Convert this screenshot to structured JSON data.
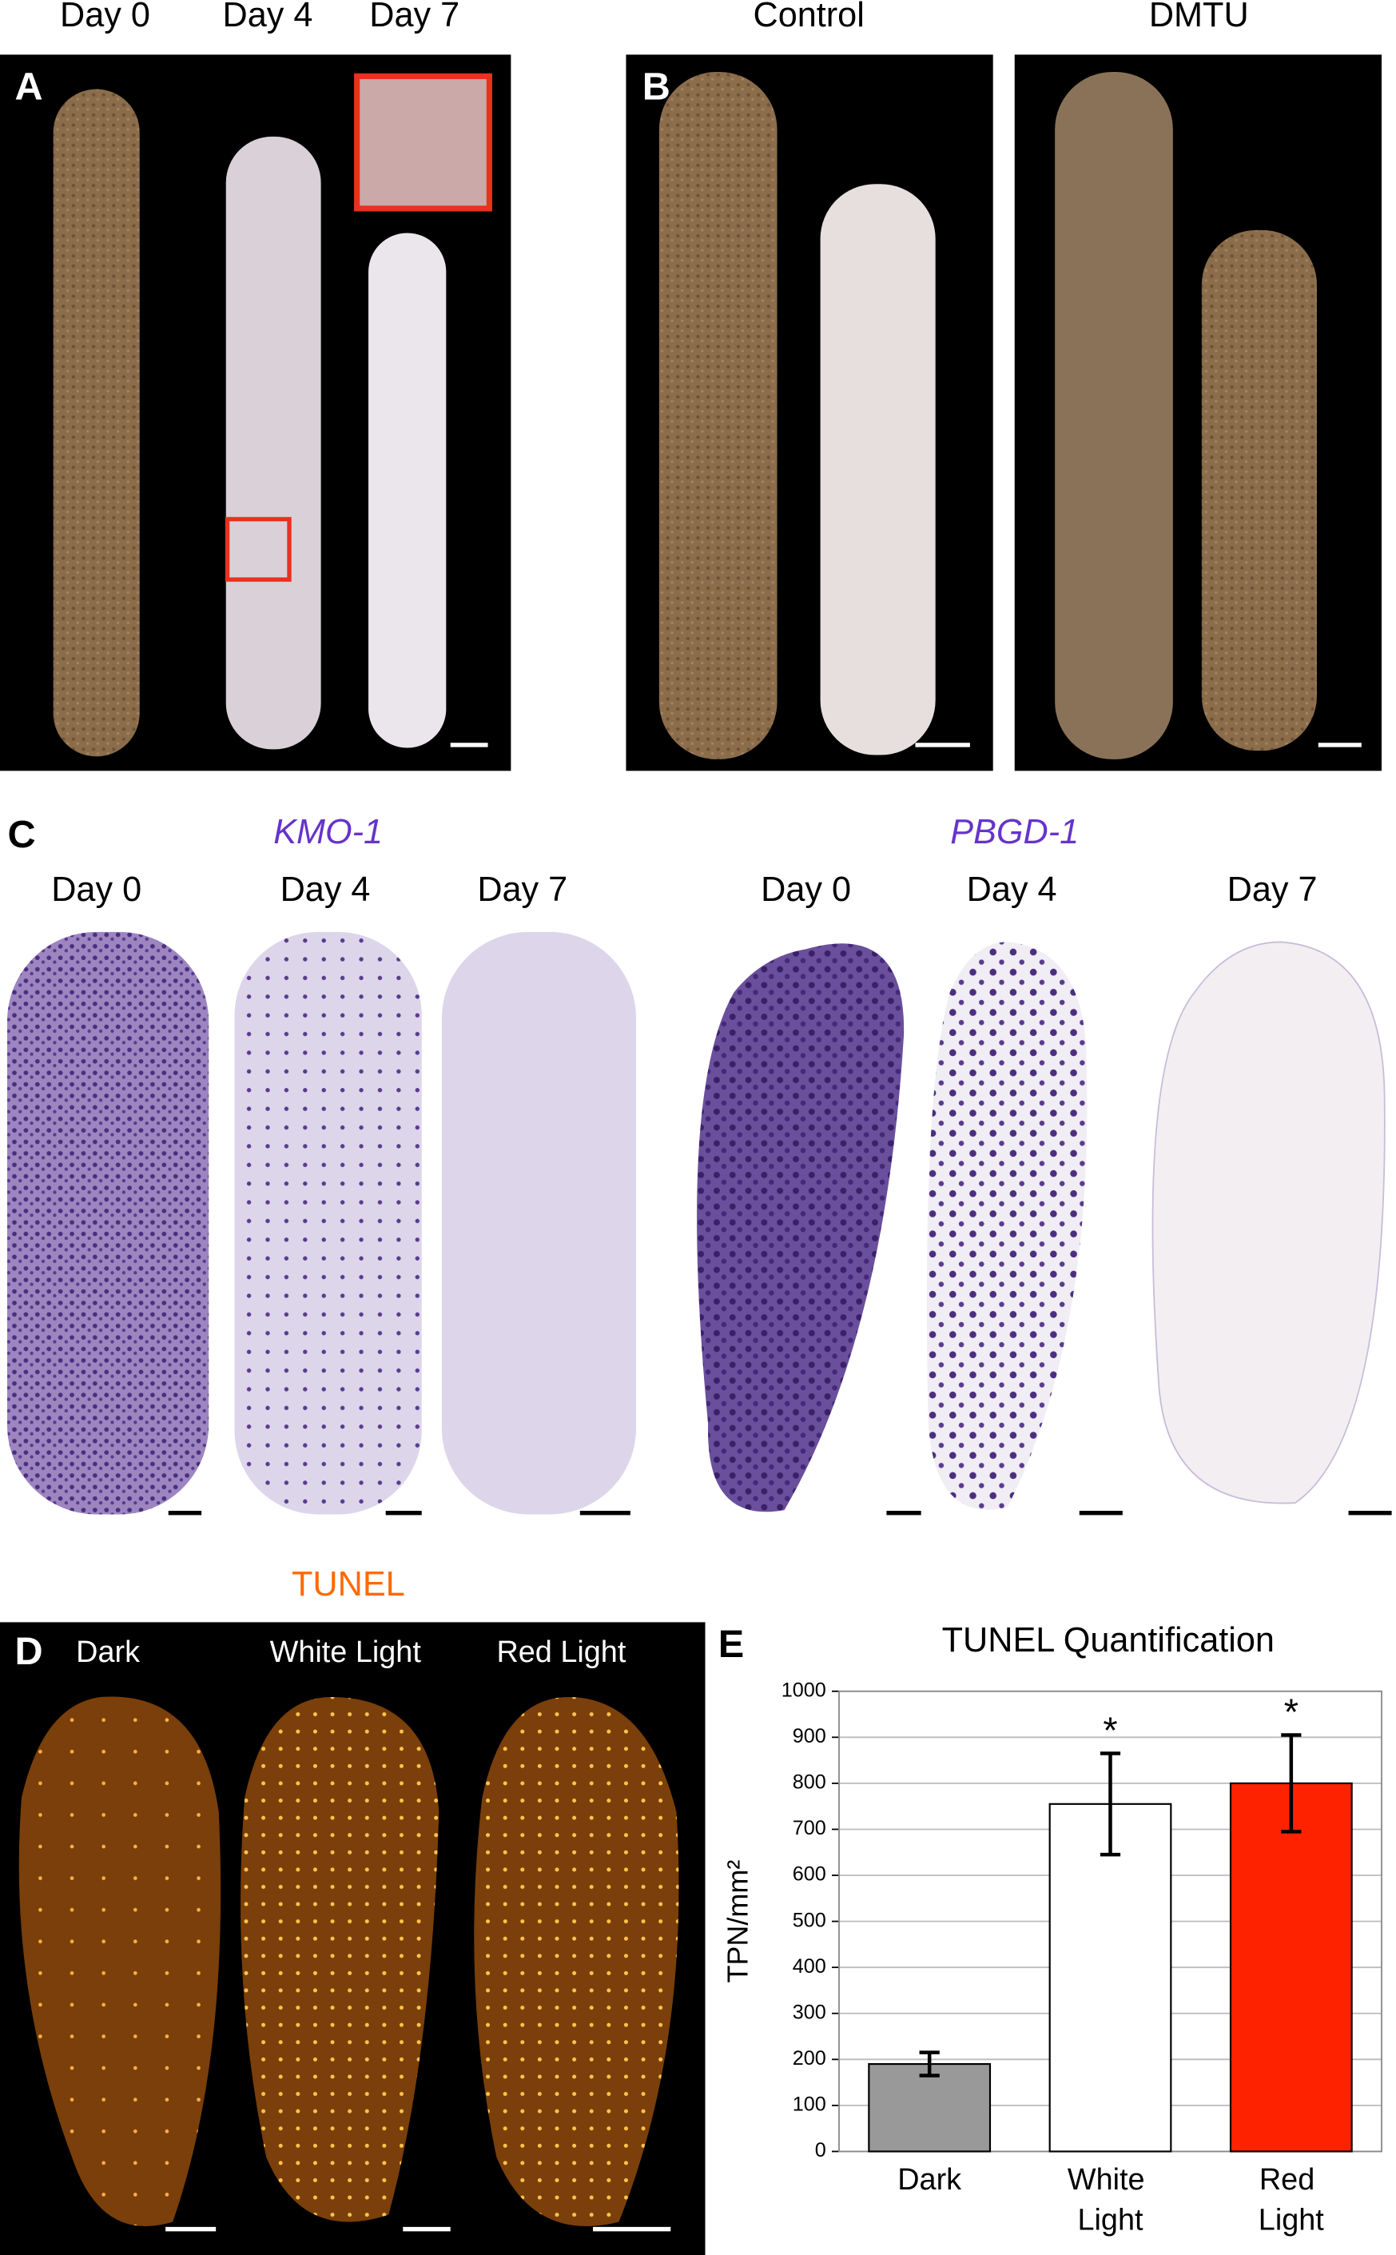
{
  "panels": {
    "A": {
      "label": "A",
      "titles": [
        "Day 0",
        "Day 4",
        "Day 7"
      ]
    },
    "B": {
      "label": "B",
      "titles": [
        "Control",
        "DMTU"
      ]
    },
    "C": {
      "label": "C",
      "genes": [
        "KMO-1",
        "PBGD-1"
      ],
      "titles": [
        "Day 0",
        "Day 4",
        "Day 7",
        "Day 0",
        "Day 4",
        "Day 7"
      ]
    },
    "D": {
      "label": "D",
      "stain": "TUNEL",
      "titles": [
        "Dark",
        "White Light",
        "Red Light"
      ]
    },
    "E": {
      "label": "E"
    }
  },
  "chart_data": {
    "type": "bar",
    "title": "TUNEL Quantification",
    "y_label": "TPN/mm²",
    "categories": [
      "Dark",
      "White Light",
      "Red Light"
    ],
    "values": [
      190,
      755,
      800
    ],
    "errors": [
      25,
      110,
      105
    ],
    "significance_labels": [
      null,
      "*",
      "*"
    ],
    "colors": [
      "#999999",
      "#ffffff",
      "#ff2200"
    ],
    "ylim": [
      0,
      1000
    ],
    "yticks": [
      0,
      100,
      200,
      300,
      400,
      500,
      600,
      700,
      800,
      900,
      1000
    ],
    "grid": true
  }
}
